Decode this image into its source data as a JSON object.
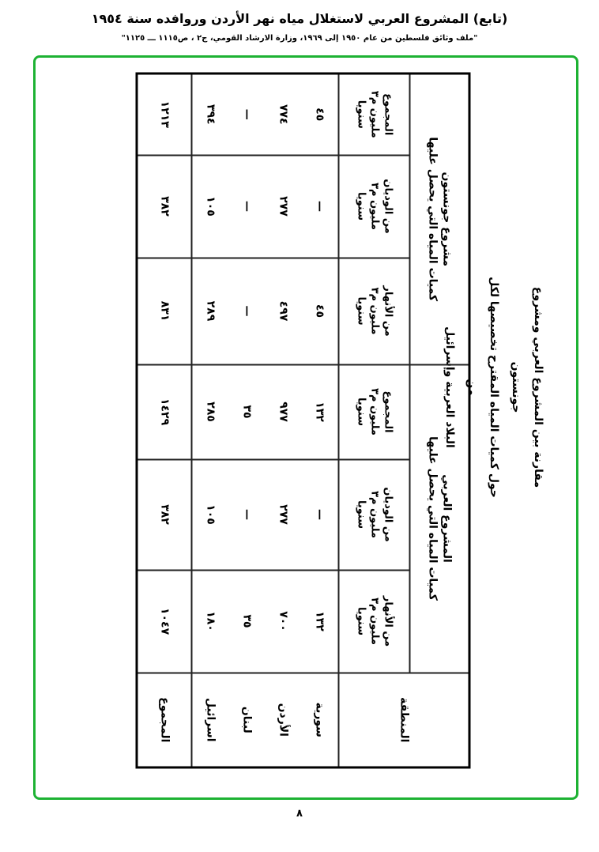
{
  "header": {
    "title": "(تابع) المشروع العربي لاستغلال مياه نهر الأردن وروافده سنة ١٩٥٤",
    "source": "\"ملف وثائق فلسطين من عام ١٩٥٠ إلى ١٩٦٩، وزارة الارشاد القومي، ج٢ ، ص١١١٥ ـــ ١١٢٥\""
  },
  "frame_color": "#1db233",
  "title_lines": [
    "مقارنة بين المشروع العربي ومشروع جونستون",
    "حول كميات المياه المقترح تخصيصها لكل من",
    "البلاد العربية وإسرائيل"
  ],
  "table": {
    "region_header": "المنطقة",
    "groups": [
      {
        "line1": "المشروع العربي",
        "line2": "كميات المياه التي يحصل عليها"
      },
      {
        "line1": "مشروع جونستون",
        "line2": "كميات المياه التي يحصل عليها"
      }
    ],
    "subheaders": [
      {
        "label": "من الأنهار",
        "unit": "مليون م٣",
        "per": "سنويا"
      },
      {
        "label": "من الوديان",
        "unit": "مليون م٣",
        "per": "سنويا"
      },
      {
        "label": "المجموع",
        "unit": "مليون م٣",
        "per": "سنويا"
      }
    ],
    "rows": [
      {
        "region": "سورية",
        "values": [
          "١٣٢",
          "—",
          "١٣٢",
          "٤٥",
          "—",
          "٤٥"
        ]
      },
      {
        "region": "الأردن",
        "values": [
          "٧٠٠",
          "٢٧٧",
          "٩٧٧",
          "٤٩٧",
          "٢٧٧",
          "٧٧٤"
        ]
      },
      {
        "region": "لبنان",
        "values": [
          "٣٥",
          "—",
          "٣٥",
          "—",
          "—",
          "—"
        ]
      },
      {
        "region": "اسرائيل",
        "values": [
          "١٨٠",
          "١٠٥",
          "٢٨٥",
          "٢٨٩",
          "١٠٥",
          "٣٩٤"
        ]
      }
    ],
    "total": {
      "region": "المجموع",
      "values": [
        "١٠٤٧",
        "٣٨٢",
        "١٤٢٩",
        "٨٣١",
        "٣٨٢",
        "١٢١٣"
      ]
    }
  },
  "page_number": "٨"
}
